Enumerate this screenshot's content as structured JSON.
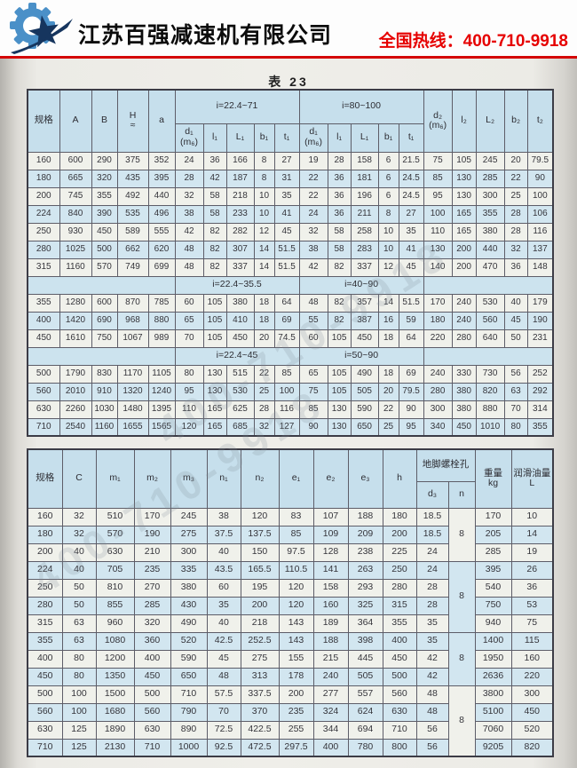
{
  "header": {
    "company": "江苏百强减速机有限公司",
    "hotline": "全国热线：400-710-9918",
    "accent_red": "#d40606",
    "logo_blue": "#4a90c8",
    "logo_navy": "#16355e"
  },
  "watermark": "400-710-9918",
  "table_title": "表 23",
  "table1": {
    "head": {
      "left": [
        "规格",
        "A",
        "B",
        "H|≈",
        "a"
      ],
      "group1": "i=22.4~71",
      "group2": "i=80~100",
      "sub": [
        "d₁|(m₆)",
        "l₁",
        "L₁",
        "b₁",
        "t₁"
      ],
      "right": [
        "d₂|(m₆)",
        "l₂",
        "L₂",
        "b₂",
        "t₂"
      ]
    },
    "sections": [
      {
        "band": null,
        "rows": [
          [
            "160",
            "600",
            "290",
            "375",
            "352",
            "24",
            "36",
            "166",
            "8",
            "27",
            "19",
            "28",
            "158",
            "6",
            "21.5",
            "75",
            "105",
            "245",
            "20",
            "79.5"
          ],
          [
            "180",
            "665",
            "320",
            "435",
            "395",
            "28",
            "42",
            "187",
            "8",
            "31",
            "22",
            "36",
            "181",
            "6",
            "24.5",
            "85",
            "130",
            "285",
            "22",
            "90"
          ],
          [
            "200",
            "745",
            "355",
            "492",
            "440",
            "32",
            "58",
            "218",
            "10",
            "35",
            "22",
            "36",
            "196",
            "6",
            "24.5",
            "95",
            "130",
            "300",
            "25",
            "100"
          ],
          [
            "224",
            "840",
            "390",
            "535",
            "496",
            "38",
            "58",
            "233",
            "10",
            "41",
            "24",
            "36",
            "211",
            "8",
            "27",
            "100",
            "165",
            "355",
            "28",
            "106"
          ],
          [
            "250",
            "930",
            "450",
            "589",
            "555",
            "42",
            "82",
            "282",
            "12",
            "45",
            "32",
            "58",
            "258",
            "10",
            "35",
            "110",
            "165",
            "380",
            "28",
            "116"
          ],
          [
            "280",
            "1025",
            "500",
            "662",
            "620",
            "48",
            "82",
            "307",
            "14",
            "51.5",
            "38",
            "58",
            "283",
            "10",
            "41",
            "130",
            "200",
            "440",
            "32",
            "137"
          ],
          [
            "315",
            "1160",
            "570",
            "749",
            "699",
            "48",
            "82",
            "337",
            "14",
            "51.5",
            "42",
            "82",
            "337",
            "12",
            "45",
            "140",
            "200",
            "470",
            "36",
            "148"
          ]
        ]
      },
      {
        "band": [
          "i=22.4~35.5",
          "i=40~90"
        ],
        "rows": [
          [
            "355",
            "1280",
            "600",
            "870",
            "785",
            "60",
            "105",
            "380",
            "18",
            "64",
            "48",
            "82",
            "357",
            "14",
            "51.5",
            "170",
            "240",
            "530",
            "40",
            "179"
          ],
          [
            "400",
            "1420",
            "690",
            "968",
            "880",
            "65",
            "105",
            "410",
            "18",
            "69",
            "55",
            "82",
            "387",
            "16",
            "59",
            "180",
            "240",
            "560",
            "45",
            "190"
          ],
          [
            "450",
            "1610",
            "750",
            "1067",
            "989",
            "70",
            "105",
            "450",
            "20",
            "74.5",
            "60",
            "105",
            "450",
            "18",
            "64",
            "220",
            "280",
            "640",
            "50",
            "231"
          ]
        ]
      },
      {
        "band": [
          "i=22.4~45",
          "i=50~90"
        ],
        "rows": [
          [
            "500",
            "1790",
            "830",
            "1170",
            "1105",
            "80",
            "130",
            "515",
            "22",
            "85",
            "65",
            "105",
            "490",
            "18",
            "69",
            "240",
            "330",
            "730",
            "56",
            "252"
          ],
          [
            "560",
            "2010",
            "910",
            "1320",
            "1240",
            "95",
            "130",
            "530",
            "25",
            "100",
            "75",
            "105",
            "505",
            "20",
            "79.5",
            "280",
            "380",
            "820",
            "63",
            "292"
          ],
          [
            "630",
            "2260",
            "1030",
            "1480",
            "1395",
            "110",
            "165",
            "625",
            "28",
            "116",
            "85",
            "130",
            "590",
            "22",
            "90",
            "300",
            "380",
            "880",
            "70",
            "314"
          ],
          [
            "710",
            "2540",
            "1160",
            "1655",
            "1565",
            "120",
            "165",
            "685",
            "32",
            "127",
            "90",
            "130",
            "650",
            "25",
            "95",
            "340",
            "450",
            "1010",
            "80",
            "355"
          ]
        ]
      }
    ]
  },
  "table2": {
    "head": {
      "cols": [
        "规格",
        "C",
        "m₁",
        "m₂",
        "m₃",
        "n₁",
        "n₂",
        "e₁",
        "e₂",
        "e₃",
        "h"
      ],
      "bolt_group": "地脚螺栓孔",
      "bolt_sub": [
        "d₃",
        "n"
      ],
      "weight": "重量|kg",
      "oil": "润滑油量|L"
    },
    "rows": [
      [
        "160",
        "32",
        "510",
        "170",
        "245",
        "38",
        "120",
        "83",
        "107",
        "188",
        "180",
        "18.5",
        "170",
        "10"
      ],
      [
        "180",
        "32",
        "570",
        "190",
        "275",
        "37.5",
        "137.5",
        "85",
        "109",
        "209",
        "200",
        "18.5",
        "205",
        "14"
      ],
      [
        "200",
        "40",
        "630",
        "210",
        "300",
        "40",
        "150",
        "97.5",
        "128",
        "238",
        "225",
        "24",
        "285",
        "19"
      ],
      [
        "224",
        "40",
        "705",
        "235",
        "335",
        "43.5",
        "165.5",
        "110.5",
        "141",
        "263",
        "250",
        "24",
        "395",
        "26"
      ],
      [
        "250",
        "50",
        "810",
        "270",
        "380",
        "60",
        "195",
        "120",
        "158",
        "293",
        "280",
        "28",
        "540",
        "36"
      ],
      [
        "280",
        "50",
        "855",
        "285",
        "430",
        "35",
        "200",
        "120",
        "160",
        "325",
        "315",
        "28",
        "750",
        "53"
      ],
      [
        "315",
        "63",
        "960",
        "320",
        "490",
        "40",
        "218",
        "143",
        "189",
        "364",
        "355",
        "35",
        "940",
        "75"
      ],
      [
        "355",
        "63",
        "1080",
        "360",
        "520",
        "42.5",
        "252.5",
        "143",
        "188",
        "398",
        "400",
        "35",
        "1400",
        "115"
      ],
      [
        "400",
        "80",
        "1200",
        "400",
        "590",
        "45",
        "275",
        "155",
        "215",
        "445",
        "450",
        "42",
        "1950",
        "160"
      ],
      [
        "450",
        "80",
        "1350",
        "450",
        "650",
        "48",
        "313",
        "178",
        "240",
        "505",
        "500",
        "42",
        "2636",
        "220"
      ],
      [
        "500",
        "100",
        "1500",
        "500",
        "710",
        "57.5",
        "337.5",
        "200",
        "277",
        "557",
        "560",
        "48",
        "3800",
        "300"
      ],
      [
        "560",
        "100",
        "1680",
        "560",
        "790",
        "70",
        "370",
        "235",
        "324",
        "624",
        "630",
        "48",
        "5100",
        "450"
      ],
      [
        "630",
        "125",
        "1890",
        "630",
        "890",
        "72.5",
        "422.5",
        "255",
        "344",
        "694",
        "710",
        "56",
        "7060",
        "520"
      ],
      [
        "710",
        "125",
        "2130",
        "710",
        "1000",
        "92.5",
        "472.5",
        "297.5",
        "400",
        "780",
        "800",
        "56",
        "9205",
        "820"
      ]
    ],
    "n_groups": [
      {
        "span": 3,
        "value": "8"
      },
      {
        "span": 4,
        "value": "8"
      },
      {
        "span": 3,
        "value": "8"
      },
      {
        "span": 4,
        "value": "8"
      }
    ]
  }
}
